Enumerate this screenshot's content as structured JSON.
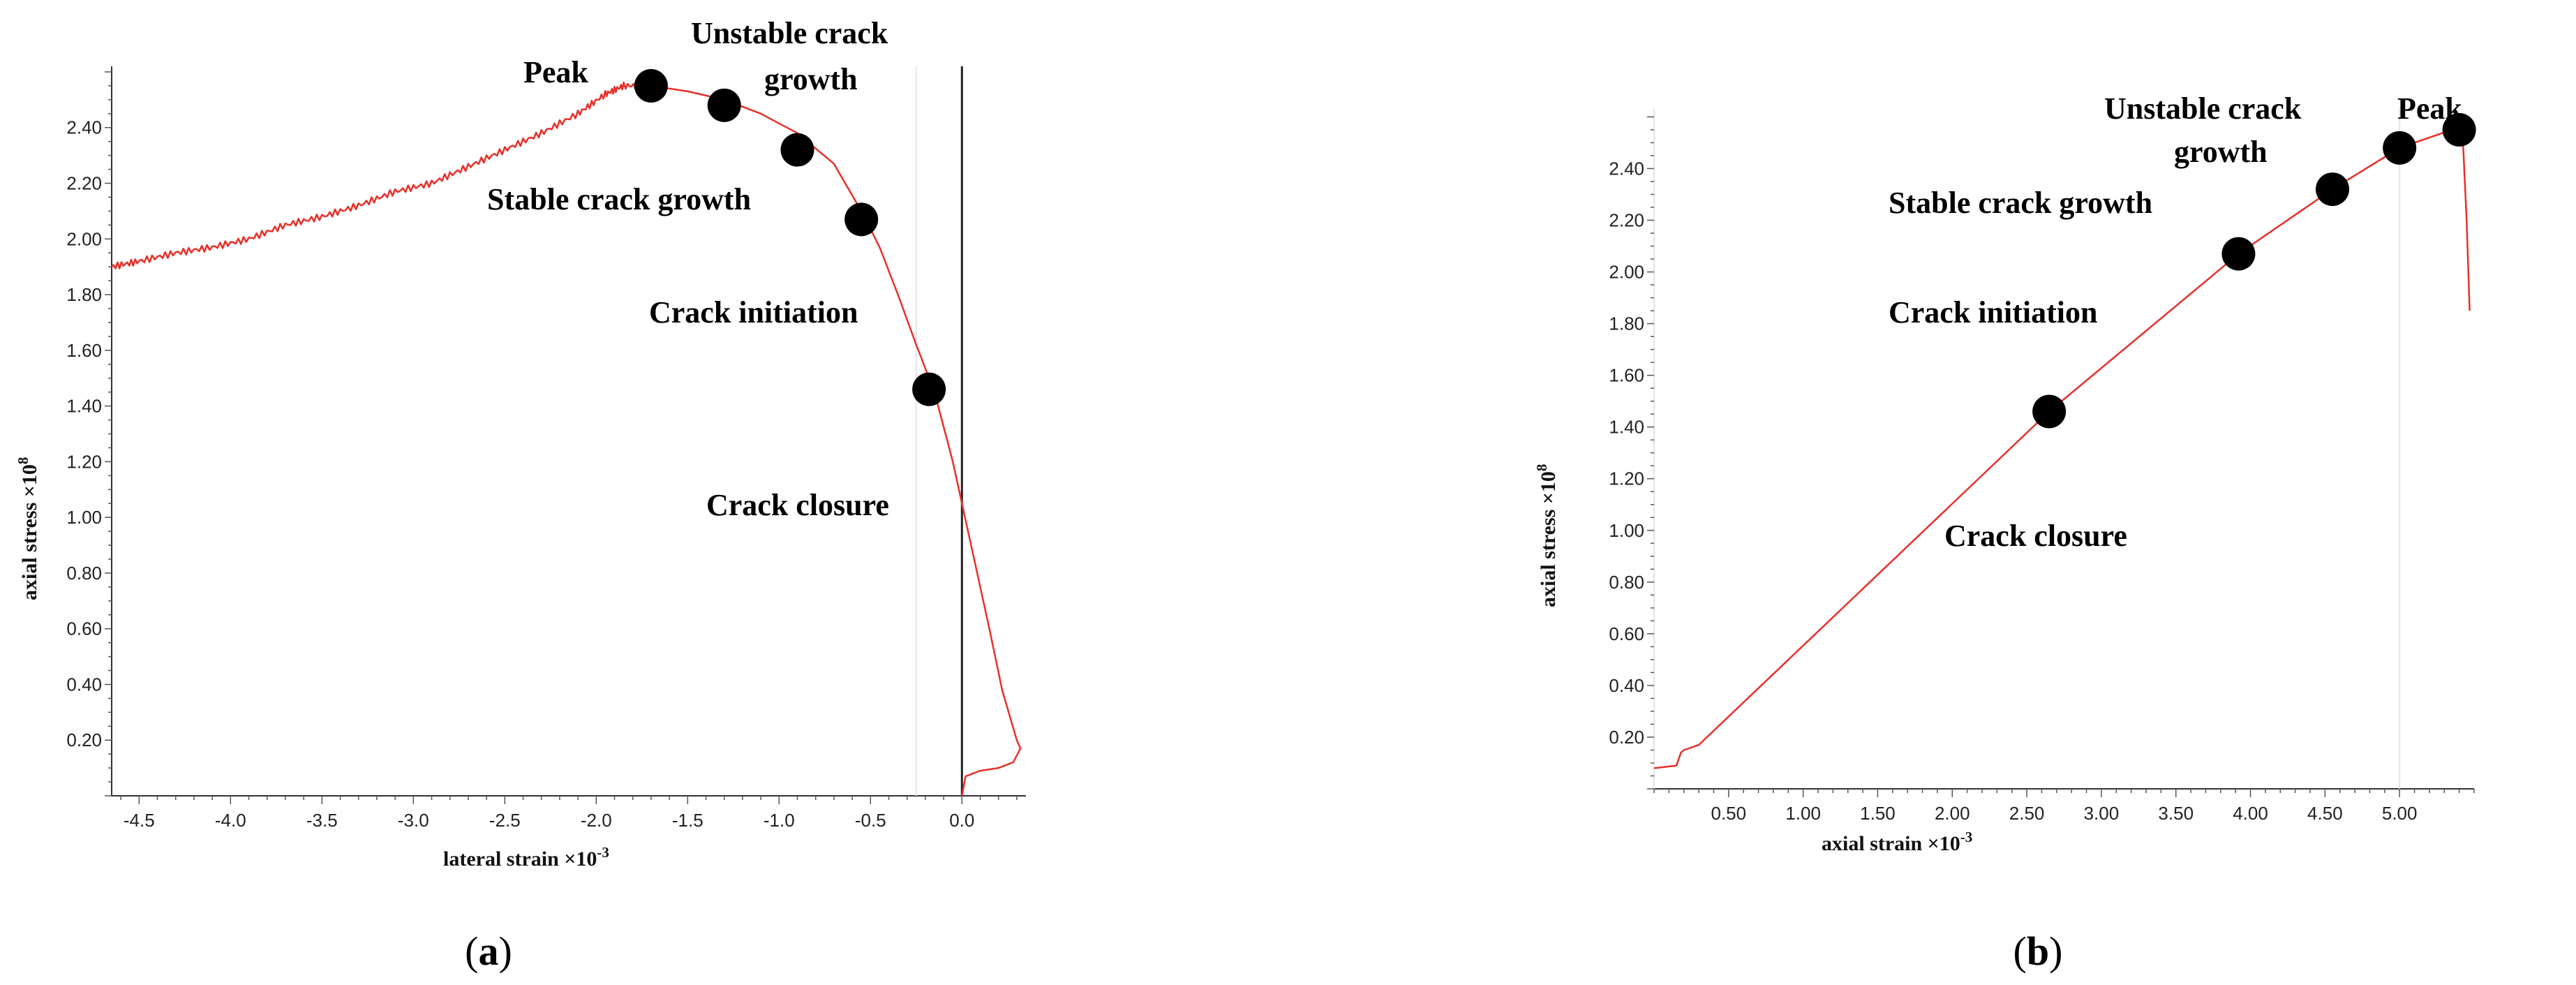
{
  "chart_data": [
    {
      "id": "a",
      "type": "line",
      "caption": "a",
      "xlabel": "lateral strain ×10",
      "xlabel_exp": "-3",
      "ylabel": "axial stress ×10",
      "ylabel_exp": "8",
      "xlim": [
        -4.65,
        0.35
      ],
      "ylim": [
        0.0,
        2.62
      ],
      "x_ticks": [
        -4.5,
        -4.0,
        -3.5,
        -3.0,
        -2.5,
        -2.0,
        -1.5,
        -1.0,
        -0.5,
        0.0
      ],
      "x_tick_labels": [
        "-4.5",
        "-4.0",
        "-3.5",
        "-3.0",
        "-2.5",
        "-2.0",
        "-1.5",
        "-1.0",
        "-0.5",
        "0.0"
      ],
      "y_ticks": [
        0.2,
        0.4,
        0.6,
        0.8,
        1.0,
        1.2,
        1.4,
        1.6,
        1.8,
        2.0,
        2.2,
        2.4
      ],
      "y_tick_labels": [
        "0.20",
        "0.40",
        "0.60",
        "0.80",
        "1.00",
        "1.20",
        "1.40",
        "1.60",
        "1.80",
        "2.00",
        "2.20",
        "2.40"
      ],
      "grid": false,
      "vertical_line_x": 0.0,
      "line_color": "#e8302a",
      "series": [
        {
          "x": [
            -4.65,
            -4.5,
            -4.3,
            -4.1,
            -3.9,
            -3.7,
            -3.5,
            -3.3,
            -3.1,
            -2.9,
            -2.7,
            -2.5,
            -2.3,
            -2.1,
            -1.95,
            -1.85,
            -1.7,
            -1.5,
            -1.3,
            -1.1,
            -0.9,
            -0.7,
            -0.55,
            -0.45,
            -0.35,
            -0.25,
            -0.15,
            -0.05,
            0.05,
            0.15,
            0.22,
            0.3,
            0.32,
            0.28,
            0.2,
            0.1,
            0.02,
            0.0
          ],
          "y": [
            1.9,
            1.92,
            1.95,
            1.97,
            2.0,
            2.05,
            2.08,
            2.12,
            2.17,
            2.2,
            2.26,
            2.32,
            2.38,
            2.45,
            2.52,
            2.55,
            2.55,
            2.53,
            2.5,
            2.45,
            2.38,
            2.27,
            2.1,
            1.97,
            1.8,
            1.62,
            1.45,
            1.2,
            0.9,
            0.6,
            0.38,
            0.2,
            0.17,
            0.12,
            0.1,
            0.09,
            0.07,
            0.0
          ]
        }
      ],
      "points": [
        {
          "x": -1.7,
          "y": 2.55
        },
        {
          "x": -1.3,
          "y": 2.48
        },
        {
          "x": -0.9,
          "y": 2.32
        },
        {
          "x": -0.55,
          "y": 2.07
        },
        {
          "x": -0.18,
          "y": 1.46
        }
      ],
      "annotations": [
        "Peak",
        "Unstable crack",
        "growth",
        "Stable crack growth",
        "Crack initiation",
        "Crack closure"
      ]
    },
    {
      "id": "b",
      "type": "line",
      "caption": "b",
      "xlabel": "axial strain ×10",
      "xlabel_exp": "-3",
      "ylabel": "axial stress ×10",
      "ylabel_exp": "8",
      "xlim": [
        0.0,
        5.5
      ],
      "ylim": [
        0.0,
        2.62
      ],
      "x_ticks": [
        0.5,
        1.0,
        1.5,
        2.0,
        2.5,
        3.0,
        3.5,
        4.0,
        4.5,
        5.0
      ],
      "x_tick_labels": [
        "0.50",
        "1.00",
        "1.50",
        "2.00",
        "2.50",
        "3.00",
        "3.50",
        "4.00",
        "4.50",
        "5.00"
      ],
      "y_ticks": [
        0.2,
        0.4,
        0.6,
        0.8,
        1.0,
        1.2,
        1.4,
        1.6,
        1.8,
        2.0,
        2.2,
        2.4
      ],
      "y_tick_labels": [
        "0.20",
        "0.40",
        "0.60",
        "0.80",
        "1.00",
        "1.20",
        "1.40",
        "1.60",
        "1.80",
        "2.00",
        "2.20",
        "2.40"
      ],
      "grid": false,
      "line_color": "#e8302a",
      "series": [
        {
          "x": [
            0.0,
            0.15,
            0.18,
            0.2,
            0.3,
            2.65,
            3.92,
            4.55,
            5.0,
            5.35,
            5.42,
            5.45,
            5.47
          ],
          "y": [
            0.08,
            0.09,
            0.14,
            0.15,
            0.17,
            1.46,
            2.07,
            2.32,
            2.48,
            2.55,
            2.57,
            2.2,
            1.85
          ]
        }
      ],
      "points": [
        {
          "x": 2.65,
          "y": 1.46
        },
        {
          "x": 3.92,
          "y": 2.07
        },
        {
          "x": 4.55,
          "y": 2.32
        },
        {
          "x": 5.0,
          "y": 2.48
        },
        {
          "x": 5.4,
          "y": 2.55
        }
      ],
      "annotations": [
        "Peak",
        "Unstable crack",
        "growth",
        "Stable crack growth",
        "Crack initiation",
        "Crack closure"
      ]
    }
  ]
}
